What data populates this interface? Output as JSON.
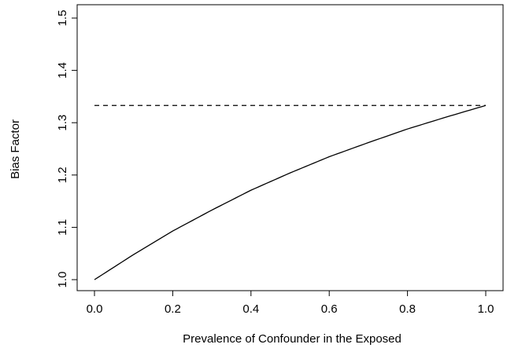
{
  "chart_data": {
    "type": "line",
    "title": "",
    "xlabel": "Prevalence of Confounder in the Exposed",
    "ylabel": "Bias Factor",
    "xlim": [
      0.0,
      1.0
    ],
    "ylim": [
      1.0,
      1.5
    ],
    "x_ticks": [
      0.0,
      0.2,
      0.4,
      0.6,
      0.8,
      1.0
    ],
    "x_tick_labels": [
      "0.0",
      "0.2",
      "0.4",
      "0.6",
      "0.8",
      "1.0"
    ],
    "y_ticks": [
      1.0,
      1.1,
      1.2,
      1.3,
      1.4,
      1.5
    ],
    "y_tick_labels": [
      "1.0",
      "1.1",
      "1.2",
      "1.3",
      "1.4",
      "1.5"
    ],
    "grid": false,
    "legend": "none",
    "series": [
      {
        "style": "solid",
        "color": "#000000",
        "x": [
          0.0,
          0.1,
          0.2,
          0.3,
          0.4,
          0.5,
          0.6,
          0.7,
          0.8,
          0.9,
          1.0
        ],
        "y": [
          1.0,
          1.048,
          1.093,
          1.133,
          1.171,
          1.204,
          1.235,
          1.262,
          1.288,
          1.311,
          1.333
        ]
      },
      {
        "style": "dashed",
        "color": "#000000",
        "x": [
          0.0,
          1.0
        ],
        "y": [
          1.333,
          1.333
        ]
      }
    ]
  }
}
